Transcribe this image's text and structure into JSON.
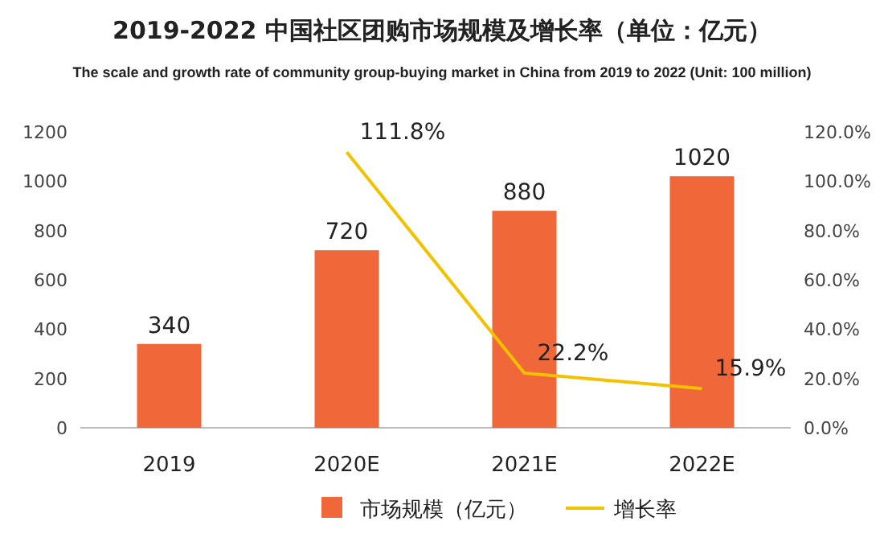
{
  "chart_data": {
    "type": "bar",
    "title": "2019-2022 中国社区团购市场规模及增长率（单位：亿元）",
    "subtitle": "The scale and growth rate of community group-buying market in China from 2019 to 2022 (Unit: 100 million)",
    "categories": [
      "2019",
      "2020E",
      "2021E",
      "2022E"
    ],
    "series": [
      {
        "name": "市场规模（亿元）",
        "color": "#f0673a",
        "values": [
          340,
          720,
          880,
          1020
        ],
        "value_labels": [
          "340",
          "720",
          "880",
          "1020"
        ]
      },
      {
        "name": "增长率",
        "type": "line",
        "axis": "y2",
        "color": "#f2c200",
        "values": [
          null,
          111.8,
          22.2,
          15.9
        ],
        "value_labels": [
          null,
          "111.8%",
          "22.2%",
          "15.9%"
        ]
      }
    ],
    "ylim": [
      0,
      1200
    ],
    "yticks": [
      0,
      200,
      400,
      600,
      800,
      1000,
      1200
    ],
    "y2lim": [
      0,
      120
    ],
    "y2ticks": [
      {
        "value": 0,
        "label": "0.0%"
      },
      {
        "value": 20,
        "label": "20.0%"
      },
      {
        "value": 40,
        "label": "40.0%"
      },
      {
        "value": 60,
        "label": "60.0%"
      },
      {
        "value": 80,
        "label": "80.0%"
      },
      {
        "value": 100,
        "label": "100.0%"
      },
      {
        "value": 120,
        "label": "120.0%"
      }
    ],
    "grid": false,
    "legend": "bottom",
    "marker": "none"
  }
}
